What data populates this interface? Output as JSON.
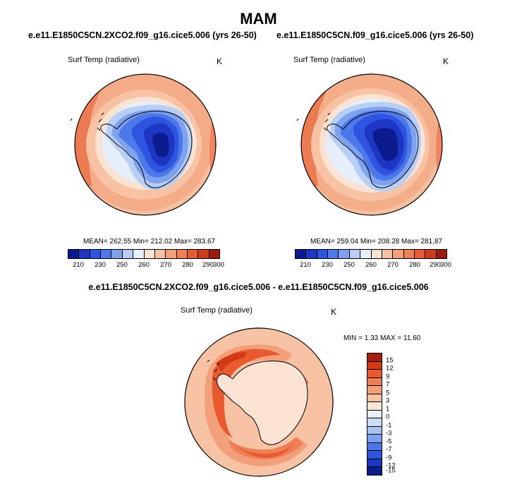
{
  "season": "MAM",
  "panels": [
    {
      "title": "e.e11.E1850C5CN.2XCO2.f09_g16.cice5.006 (yrs 26-50)",
      "variable": "Surf Temp (radiative)",
      "units": "K",
      "stats": "MEAN= 262.55  Min= 212.02  Max= 283.67"
    },
    {
      "title": "e.e11.E1850C5CN.f09_g16.cice5.006 (yrs 26-50)",
      "variable": "Surf Temp (radiative)",
      "units": "K",
      "stats": "MEAN= 259.04  Min= 208.28  Max= 281.87"
    },
    {
      "title": "e.e11.E1850C5CN.2XCO2.f09_g16.cice5.006 - e.e11.E1850C5CN.f09_g16.cice5.006",
      "variable": "Surf Temp (radiative)",
      "units": "K",
      "stats": "MIN =   1.33 MAX =  11.60"
    }
  ],
  "colors": {
    "abs_levels": [
      "#0b1a8c",
      "#1d36c4",
      "#2f55e0",
      "#4d78ea",
      "#7fa2f0",
      "#b8cff5",
      "#e6eefb",
      "#fbe3d3",
      "#f7c3a4",
      "#f3a07a",
      "#ee7f57",
      "#e45b37",
      "#cf3a1f",
      "#9c1a10"
    ],
    "diff_levels": [
      "#0b1a8c",
      "#1d36c4",
      "#2f55e0",
      "#4d78ea",
      "#7fa2f0",
      "#a8c2f2",
      "#cddcf7",
      "#e9f0fb",
      "#fce6d7",
      "#f7c3a4",
      "#f3a07a",
      "#ee7f57",
      "#e85a2e",
      "#d23a16",
      "#a41e0c"
    ],
    "outline": "#000000"
  },
  "chart_data": [
    {
      "type": "heatmap",
      "projection": "polar-stereographic (Southern Hemisphere)",
      "title": "e.e11.E1850C5CN.2XCO2.f09_g16.cice5.006 (yrs 26-50)",
      "variable": "Surf Temp (radiative)",
      "units": "K",
      "mean": 262.55,
      "min": 212.02,
      "max": 283.67,
      "colorbar_labels": [
        "210",
        "230",
        "250",
        "260",
        "270",
        "280",
        "290",
        "300"
      ]
    },
    {
      "type": "heatmap",
      "projection": "polar-stereographic (Southern Hemisphere)",
      "title": "e.e11.E1850C5CN.f09_g16.cice5.006 (yrs 26-50)",
      "variable": "Surf Temp (radiative)",
      "units": "K",
      "mean": 259.04,
      "min": 208.28,
      "max": 281.87,
      "colorbar_labels": [
        "210",
        "230",
        "250",
        "260",
        "270",
        "280",
        "290",
        "300"
      ]
    },
    {
      "type": "heatmap",
      "projection": "polar-stereographic (Southern Hemisphere)",
      "title": "e.e11.E1850C5CN.2XCO2.f09_g16.cice5.006 - e.e11.E1850C5CN.f09_g16.cice5.006",
      "variable": "Surf Temp (radiative)",
      "units": "K",
      "min": 1.33,
      "max": 11.6,
      "colorbar_labels": [
        "15",
        "12",
        "9",
        "7",
        "5",
        "3",
        "1",
        "0",
        "-1",
        "-3",
        "-5",
        "-7",
        "-9",
        "-12",
        "-15"
      ]
    }
  ]
}
